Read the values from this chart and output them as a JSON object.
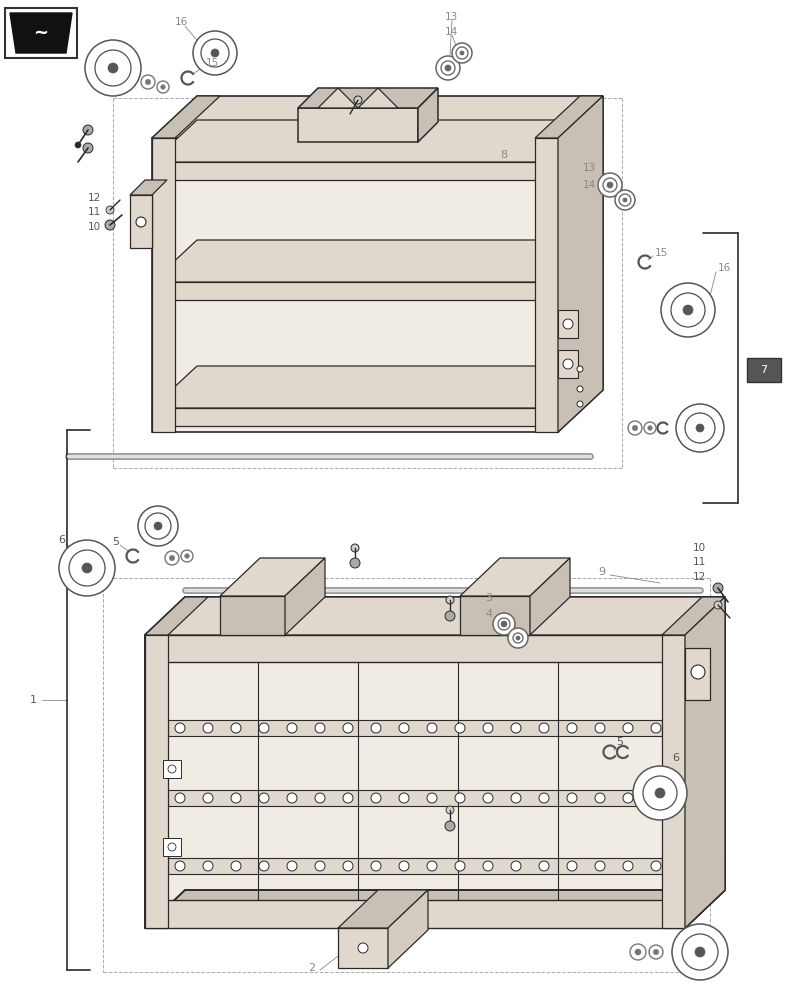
{
  "bg": "#ffffff",
  "lc": "#2a2a2a",
  "gc": "#888888",
  "dc": "#aaaaaa",
  "fill_light": "#f0ece4",
  "fill_mid": "#e0d8cc",
  "fill_dark": "#c8c0b4",
  "fill_side": "#d4ccc0",
  "lbl": "#555555",
  "lbl_gray": "#888888"
}
